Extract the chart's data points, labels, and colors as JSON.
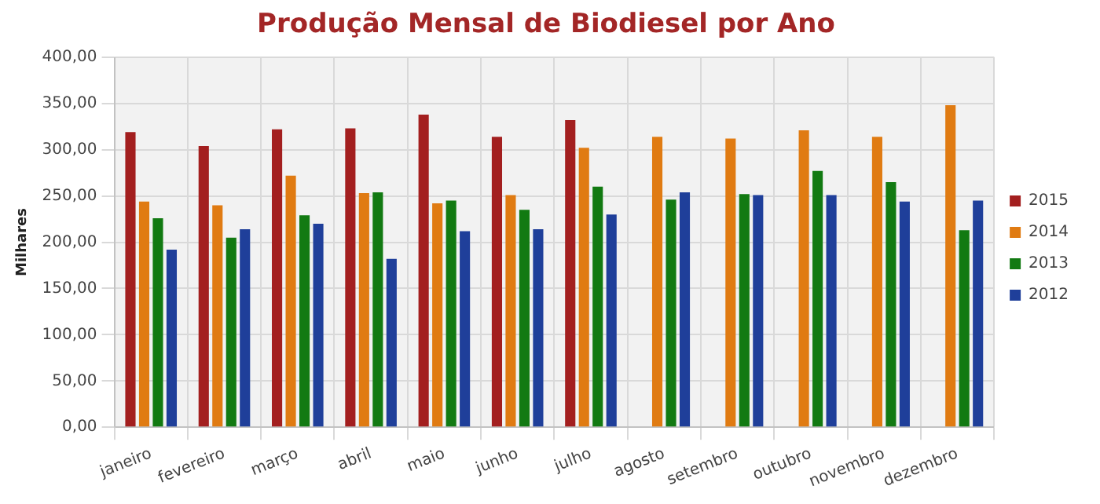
{
  "chart_data": {
    "type": "bar",
    "title": "Produção Mensal de Biodiesel por Ano",
    "ylabel": "Milhares",
    "categories": [
      "janeiro",
      "fevereiro",
      "março",
      "abril",
      "maio",
      "junho",
      "julho",
      "agosto",
      "setembro",
      "outubro",
      "novembro",
      "dezembro"
    ],
    "series": [
      {
        "name": "2015",
        "color": "#a31f1f",
        "values": [
          319,
          304,
          322,
          323,
          338,
          314,
          332,
          null,
          null,
          null,
          null,
          null
        ]
      },
      {
        "name": "2014",
        "color": "#e07b12",
        "values": [
          244,
          240,
          272,
          253,
          242,
          251,
          302,
          314,
          312,
          321,
          314,
          348
        ]
      },
      {
        "name": "2013",
        "color": "#127a12",
        "values": [
          226,
          205,
          229,
          254,
          245,
          235,
          260,
          246,
          252,
          277,
          265,
          213
        ]
      },
      {
        "name": "2012",
        "color": "#1f3f9a",
        "values": [
          192,
          214,
          220,
          182,
          212,
          214,
          230,
          254,
          251,
          251,
          244,
          245
        ]
      }
    ],
    "ylim": [
      0,
      400
    ],
    "yticks": [
      {
        "value": 0,
        "label": "0,00"
      },
      {
        "value": 50,
        "label": "50,00"
      },
      {
        "value": 100,
        "label": "100,00"
      },
      {
        "value": 150,
        "label": "150,00"
      },
      {
        "value": 200,
        "label": "200,00"
      },
      {
        "value": 250,
        "label": "250,00"
      },
      {
        "value": 300,
        "label": "300,00"
      },
      {
        "value": 350,
        "label": "350,00"
      },
      {
        "value": 400,
        "label": "400,00"
      }
    ],
    "grid": true,
    "legend": "right"
  }
}
